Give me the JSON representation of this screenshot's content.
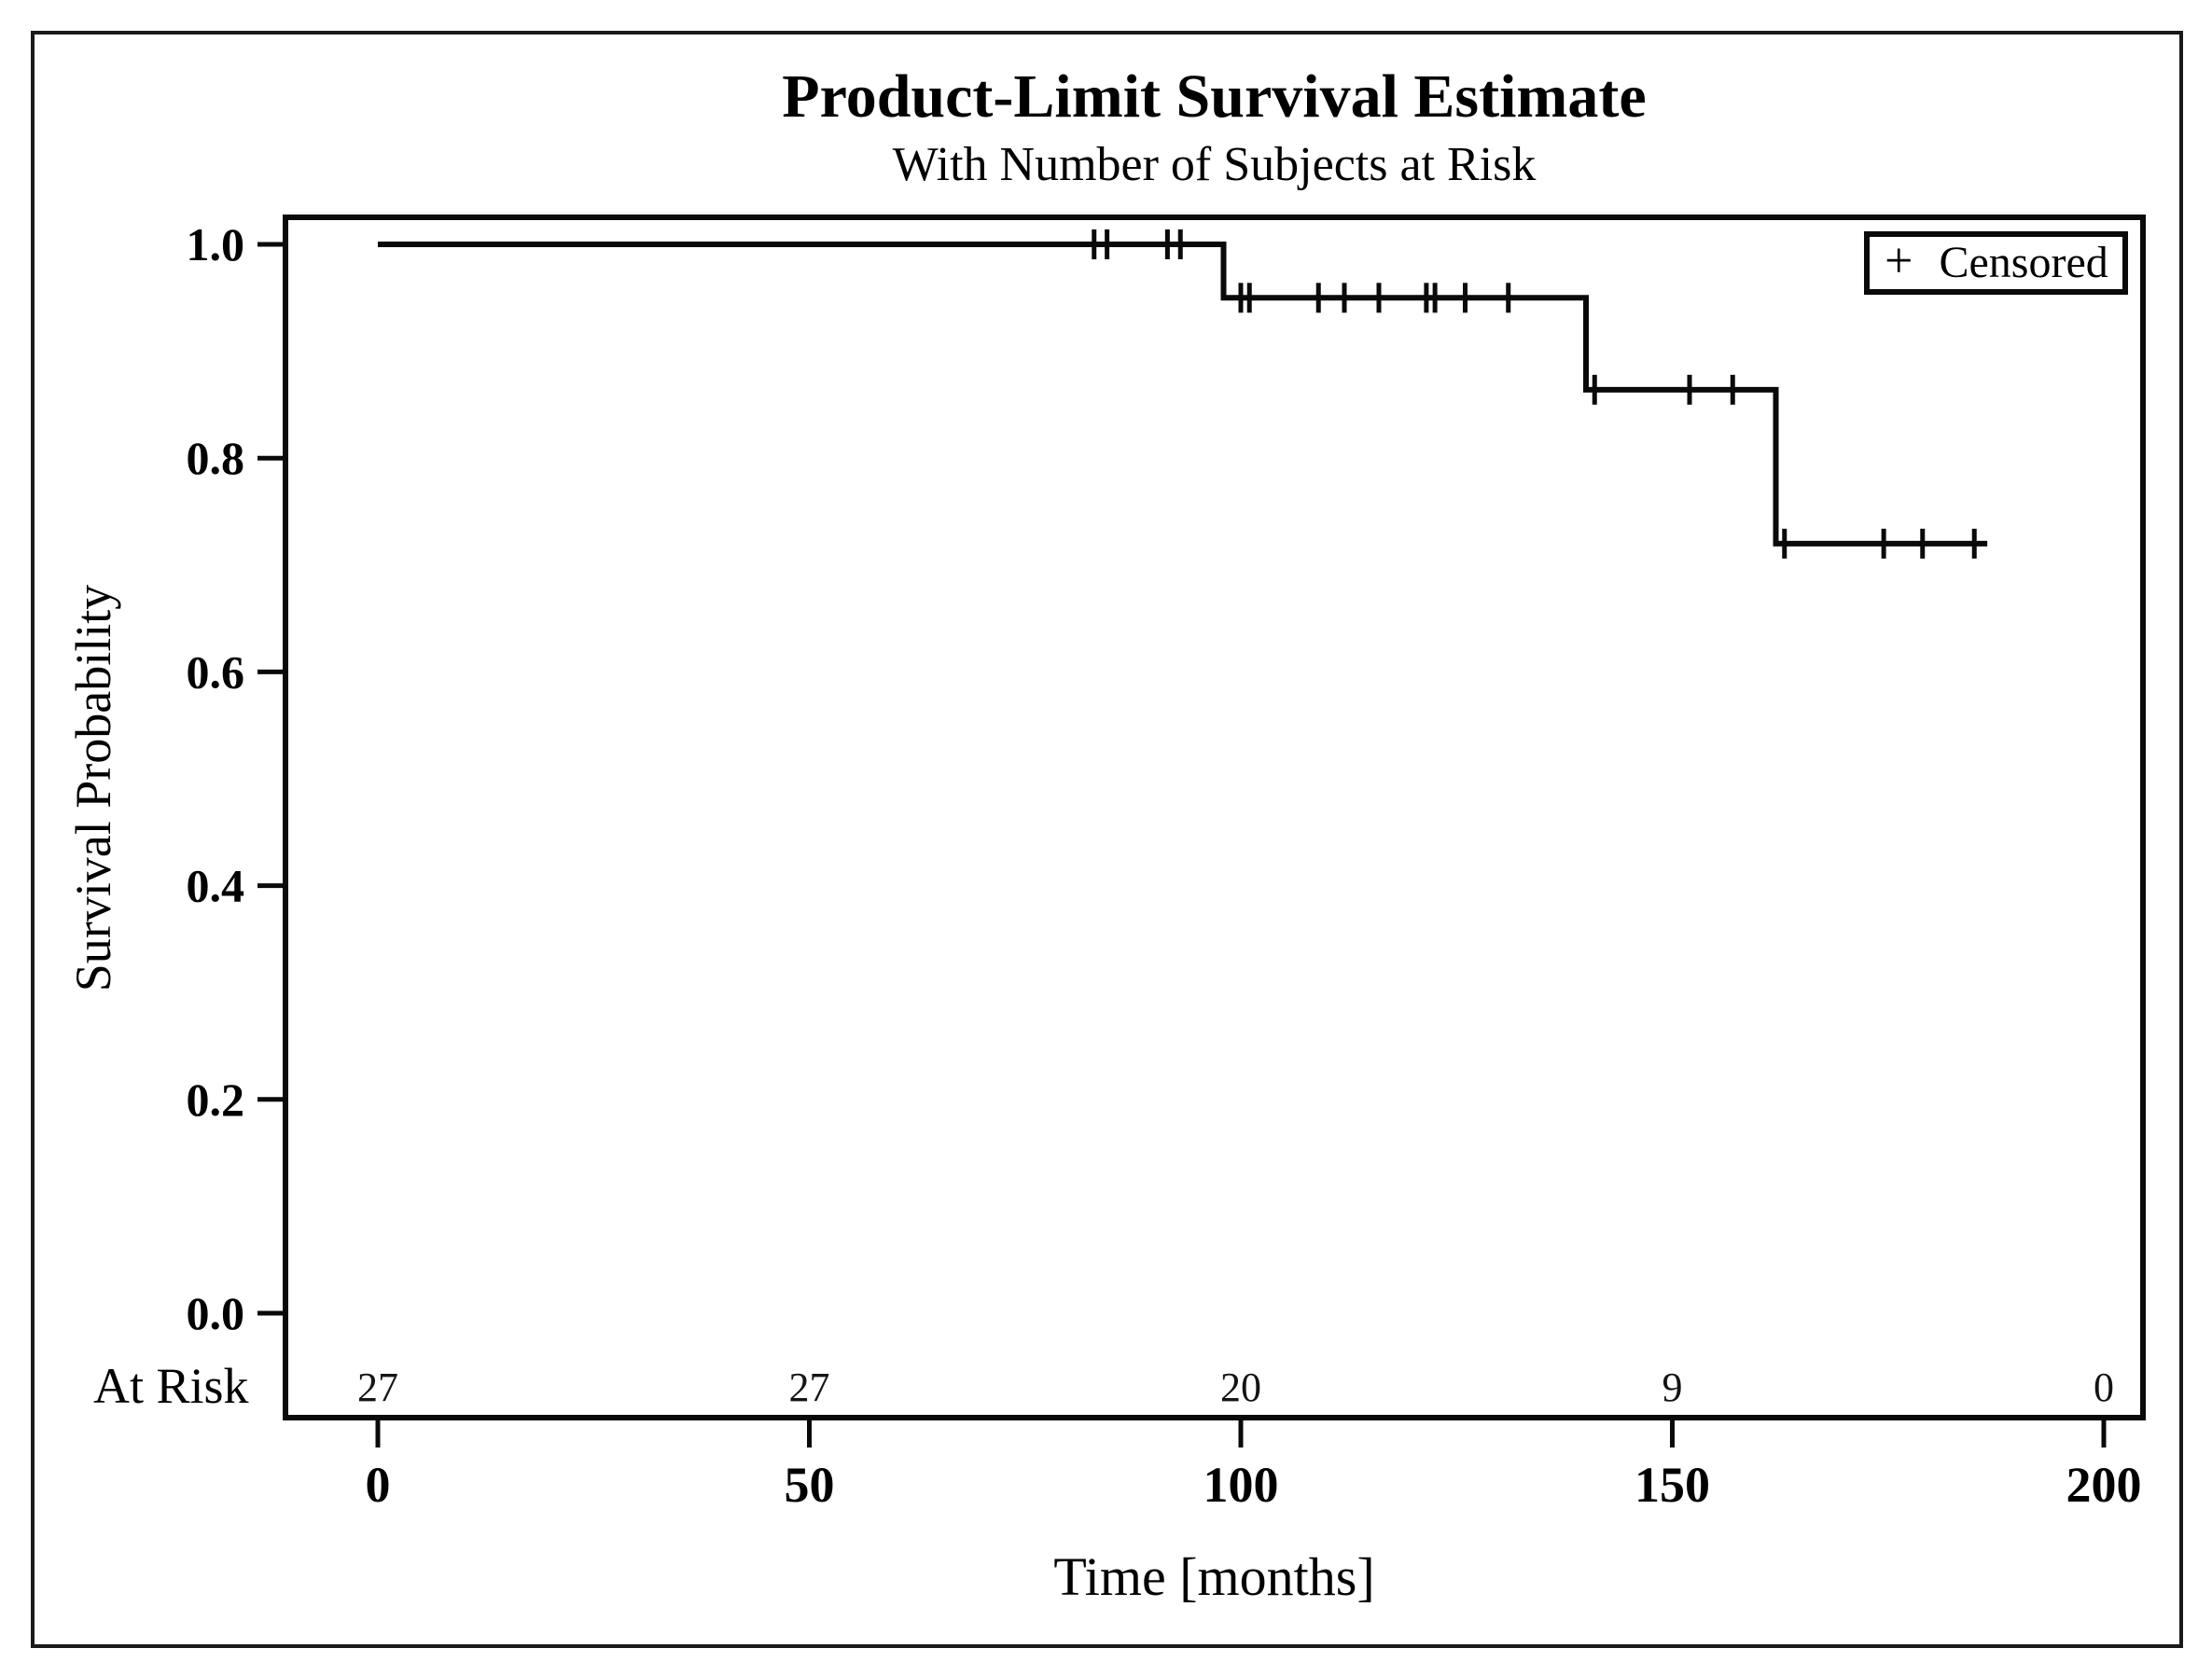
{
  "figure": {
    "background": "#ffffff",
    "border_color": "#1a1a1a",
    "line_color": "#0a0a0a"
  },
  "chart_data": {
    "type": "line",
    "subtype": "kaplan-meier-step-curve",
    "title": "Product-Limit Survival Estimate",
    "subtitle": "With Number of Subjects at Risk",
    "grid": false,
    "x_axis": {
      "label": "Time [months]",
      "range": [
        0,
        200
      ],
      "ticks": [
        {
          "value": 0,
          "label": "0"
        },
        {
          "value": 50,
          "label": "50"
        },
        {
          "value": 100,
          "label": "100"
        },
        {
          "value": 150,
          "label": "150"
        },
        {
          "value": 200,
          "label": "200"
        }
      ]
    },
    "y_axis": {
      "label": "Survival Probability",
      "range": [
        0.0,
        1.0
      ],
      "ticks": [
        {
          "value": 1.0,
          "label": "1.0"
        },
        {
          "value": 0.8,
          "label": "0.8"
        },
        {
          "value": 0.6,
          "label": "0.6"
        },
        {
          "value": 0.4,
          "label": "0.4"
        },
        {
          "value": 0.2,
          "label": "0.2"
        },
        {
          "value": 0.0,
          "label": "0.0"
        }
      ]
    },
    "legend": {
      "symbol": "+",
      "label": "Censored",
      "position": "top-right-inside"
    },
    "series": [
      {
        "name": "survival-estimate",
        "steps": [
          {
            "t_start": 0,
            "t_end": 98,
            "survival": 1.0
          },
          {
            "t_start": 98,
            "t_end": 140,
            "survival": 0.95
          },
          {
            "t_start": 140,
            "t_end": 162,
            "survival": 0.864
          },
          {
            "t_start": 162,
            "t_end": 186.5,
            "survival": 0.72
          }
        ],
        "censor_marks": [
          {
            "t": 83,
            "survival": 1.0
          },
          {
            "t": 84.5,
            "survival": 1.0
          },
          {
            "t": 91.5,
            "survival": 1.0
          },
          {
            "t": 93,
            "survival": 1.0
          },
          {
            "t": 100,
            "survival": 0.95
          },
          {
            "t": 101,
            "survival": 0.95
          },
          {
            "t": 109,
            "survival": 0.95
          },
          {
            "t": 112,
            "survival": 0.95
          },
          {
            "t": 116,
            "survival": 0.95
          },
          {
            "t": 121.5,
            "survival": 0.95
          },
          {
            "t": 122.5,
            "survival": 0.95
          },
          {
            "t": 126,
            "survival": 0.95
          },
          {
            "t": 131,
            "survival": 0.95
          },
          {
            "t": 141,
            "survival": 0.864
          },
          {
            "t": 152,
            "survival": 0.864
          },
          {
            "t": 157,
            "survival": 0.864
          },
          {
            "t": 163,
            "survival": 0.72
          },
          {
            "t": 174.5,
            "survival": 0.72
          },
          {
            "t": 179,
            "survival": 0.72
          },
          {
            "t": 185,
            "survival": 0.72
          }
        ]
      }
    ],
    "at_risk": {
      "label": "At Risk",
      "times": [
        0,
        50,
        100,
        150,
        200
      ],
      "counts": [
        "27",
        "27",
        "20",
        "9",
        "0"
      ]
    }
  }
}
